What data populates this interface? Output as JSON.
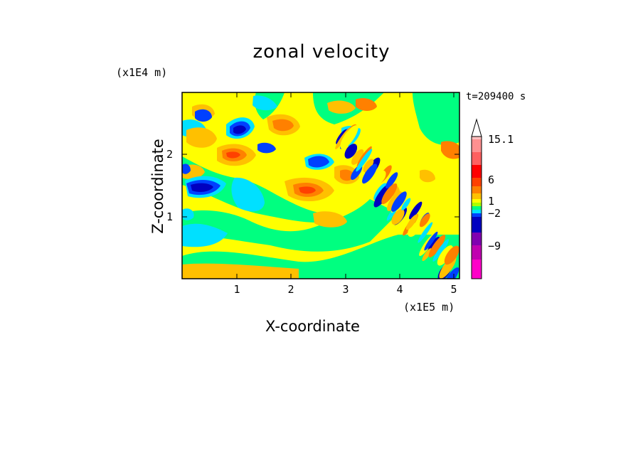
{
  "chart_data": {
    "type": "heatmap",
    "title": "zonal velocity",
    "xlabel": "X-coordinate",
    "ylabel": "Z-coordinate",
    "x_unit_label": "(x1E5 m)",
    "y_unit_label": "(x1E4 m)",
    "time_label": "t=209400 s",
    "xlim": [
      0,
      5.1
    ],
    "ylim": [
      0,
      2.95
    ],
    "x_ticks": [
      "1",
      "2",
      "3",
      "4",
      "5"
    ],
    "y_ticks": [
      "1",
      "2"
    ],
    "colorbar": {
      "tick_labels": [
        "15.1",
        "6",
        "1",
        "−2",
        "−9"
      ],
      "colors": [
        "#ff00c8",
        "#c000b0",
        "#8000b0",
        "#0000c0",
        "#0040ff",
        "#00e0ff",
        "#00ff80",
        "#aaff00",
        "#ffff00",
        "#ffc000",
        "#ff8000",
        "#ff4000",
        "#ff0000",
        "#ff6060",
        "#ff9090",
        "#ffc0c0"
      ],
      "extend": "max"
    },
    "field_description": "Zonal velocity contours: tilted wave bands with alternating warm (red/orange) and cold (blue) cells in upper-left, oblique wave train descending toward lower right."
  }
}
